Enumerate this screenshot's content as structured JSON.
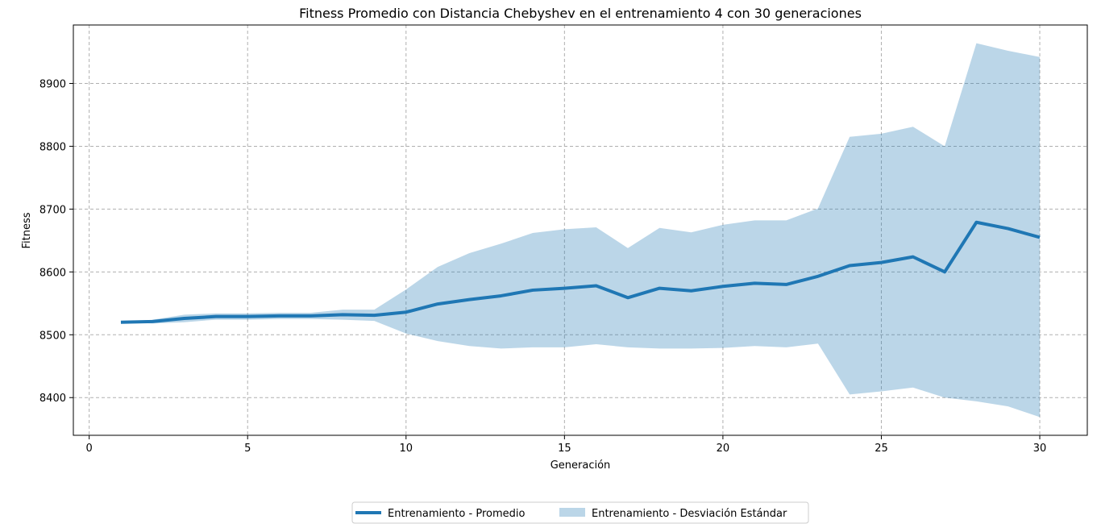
{
  "chart_data": {
    "type": "line",
    "title": "Fitness Promedio con Distancia Chebyshev en el entrenamiento 4 con 30 generaciones",
    "xlabel": "Generación",
    "ylabel": "Fitness",
    "xlim": [
      -0.5,
      31.5
    ],
    "ylim": [
      8340,
      8993
    ],
    "x_ticks": [
      0,
      5,
      10,
      15,
      20,
      25,
      30
    ],
    "x_tick_labels": [
      "0",
      "5",
      "10",
      "15",
      "20",
      "25",
      "30"
    ],
    "y_ticks": [
      8400,
      8500,
      8600,
      8700,
      8800,
      8900
    ],
    "y_tick_labels": [
      "8400",
      "8500",
      "8600",
      "8700",
      "8800",
      "8900"
    ],
    "grid": true,
    "legend_position": "bottom-center",
    "x": [
      1,
      2,
      3,
      4,
      5,
      6,
      7,
      8,
      9,
      10,
      11,
      12,
      13,
      14,
      15,
      16,
      17,
      18,
      19,
      20,
      21,
      22,
      23,
      24,
      25,
      26,
      27,
      28,
      29,
      30
    ],
    "series": [
      {
        "name": "Entrenamiento  - Promedio",
        "kind": "line",
        "color": "#1f77b4",
        "values": [
          8520,
          8521,
          8526,
          8529,
          8529,
          8530,
          8530,
          8532,
          8531,
          8536,
          8549,
          8556,
          8562,
          8571,
          8574,
          8578,
          8559,
          8574,
          8570,
          8577,
          8582,
          8580,
          8593,
          8610,
          8615,
          8624,
          8600,
          8679,
          8669,
          8655
        ]
      },
      {
        "name": "Entrenamiento  - Desviación Estándar",
        "kind": "band",
        "color": "#1f77b4",
        "opacity": 0.3,
        "upper": [
          8520,
          8524,
          8532,
          8534,
          8534,
          8535,
          8535,
          8540,
          8540,
          8572,
          8608,
          8630,
          8645,
          8662,
          8668,
          8671,
          8638,
          8670,
          8663,
          8675,
          8682,
          8682,
          8701,
          8815,
          8820,
          8831,
          8800,
          8964,
          8952,
          8942
        ],
        "lower": [
          8520,
          8518,
          8520,
          8524,
          8524,
          8525,
          8525,
          8524,
          8522,
          8502,
          8490,
          8482,
          8478,
          8480,
          8480,
          8485,
          8480,
          8478,
          8478,
          8479,
          8482,
          8480,
          8486,
          8405,
          8410,
          8416,
          8400,
          8394,
          8386,
          8369
        ]
      }
    ]
  }
}
